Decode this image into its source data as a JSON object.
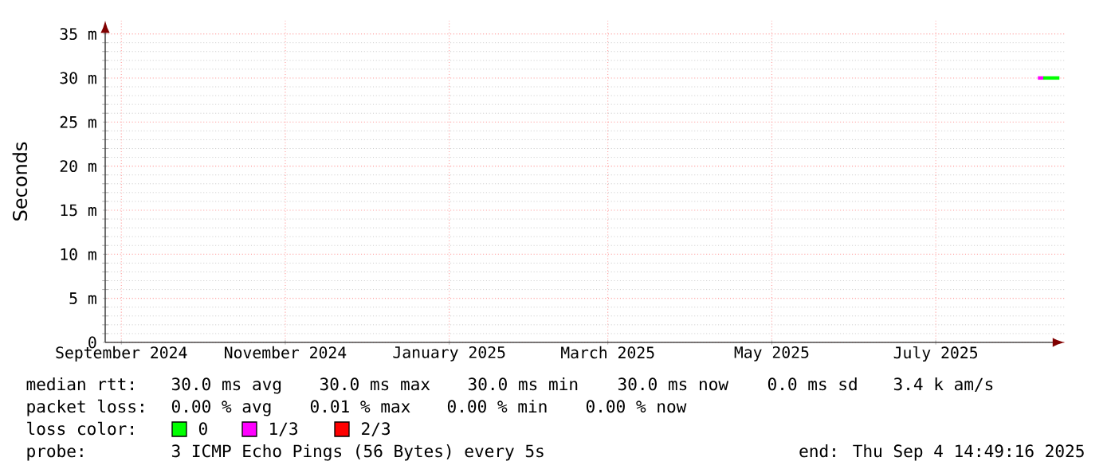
{
  "chart_data": {
    "type": "line",
    "ylabel": "Seconds",
    "legend_title": "loss color:",
    "legend": "bottom",
    "grid": true,
    "marker": "none",
    "line_style": "solid",
    "xlim": [
      "2024-08-26",
      "2025-08-18"
    ],
    "xticks": [
      {
        "value": "2024-09-01",
        "label": "September 2024"
      },
      {
        "value": "2024-11-01",
        "label": "November 2024"
      },
      {
        "value": "2025-01-01",
        "label": "January 2025"
      },
      {
        "value": "2025-03-01",
        "label": "March 2025"
      },
      {
        "value": "2025-05-01",
        "label": "May 2025"
      },
      {
        "value": "2025-07-01",
        "label": "July 2025"
      }
    ],
    "ylim": [
      0,
      36.5
    ],
    "yticks": [
      0,
      {
        "value": 5,
        "label": "5 m"
      },
      {
        "value": 10,
        "label": "10 m"
      },
      {
        "value": 15,
        "label": "15 m"
      },
      {
        "value": 20,
        "label": "20 m"
      },
      {
        "value": 25,
        "label": "25 m"
      },
      {
        "value": 30,
        "label": "30 m"
      },
      {
        "value": 35,
        "label": "35 m"
      }
    ],
    "series": [
      {
        "name": "0",
        "color": "#00ff00",
        "x": [
          "2025-08-10",
          "2025-08-16"
        ],
        "values": [
          30,
          30
        ]
      },
      {
        "name": "1/3",
        "color": "#ff00ff",
        "x": [
          "2025-08-08",
          "2025-08-10"
        ],
        "values": [
          30,
          30
        ]
      },
      {
        "name": "2/3",
        "color": "#ff0000"
      }
    ],
    "annotations": [
      "median rtt:",
      "30.0 ms avg",
      "30.0 ms max",
      "30.0 ms min",
      "30.0 ms now",
      "0.0 ms sd",
      "3.4 k am/s",
      "packet loss:",
      "0.00 % avg",
      "0.01 % max",
      "0.00 % min",
      "0.00 % now",
      "probe:",
      "3 ICMP Echo Pings (56 Bytes) every 5s",
      "end: Thu Sep  4 14:49:16 2025"
    ]
  }
}
